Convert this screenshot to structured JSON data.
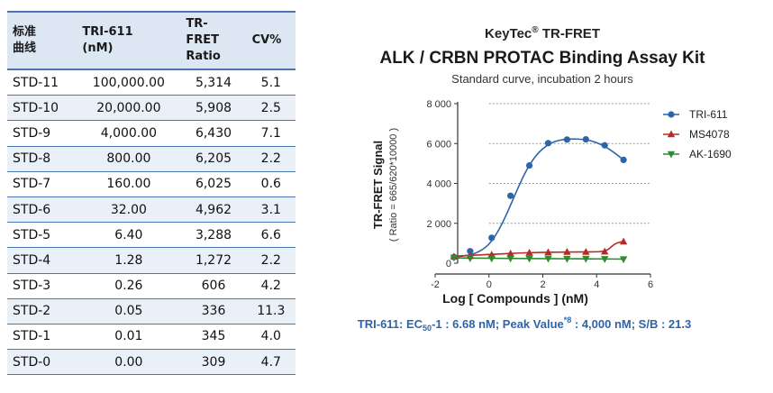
{
  "table": {
    "headers": [
      "标准\n曲线",
      "TRI-611\n(nM)",
      "TR-\nFRET\nRatio",
      "CV%"
    ],
    "rows": [
      [
        "STD-11",
        "100,000.00",
        "5,314",
        "5.1"
      ],
      [
        "STD-10",
        "20,000.00",
        "5,908",
        "2.5"
      ],
      [
        "STD-9",
        "4,000.00",
        "6,430",
        "7.1"
      ],
      [
        "STD-8",
        "800.00",
        "6,205",
        "2.2"
      ],
      [
        "STD-7",
        "160.00",
        "6,025",
        "0.6"
      ],
      [
        "STD-6",
        "32.00",
        "4,962",
        "3.1"
      ],
      [
        "STD-5",
        "6.40",
        "3,288",
        "6.6"
      ],
      [
        "STD-4",
        "1.28",
        "1,272",
        "2.2"
      ],
      [
        "STD-3",
        "0.26",
        "606",
        "4.2"
      ],
      [
        "STD-2",
        "0.05",
        "336",
        "11.3"
      ],
      [
        "STD-1",
        "0.01",
        "345",
        "4.0"
      ],
      [
        "STD-0",
        "0.00",
        "309",
        "4.7"
      ]
    ]
  },
  "chart_data": {
    "type": "scatter",
    "brand": "KeyTec",
    "brand_mark": "®",
    "brand_suffix": " TR-FRET",
    "title": "ALK / CRBN PROTAC Binding Assay Kit",
    "subtitle": "Standard curve, incubation 2 hours",
    "xlabel": "Log [ Compounds ] (nM)",
    "ylabel": "TR-FRET Signal",
    "ylabel2": "( Ratio = 665/620*10000 )",
    "xlim": [
      -2,
      6
    ],
    "ylim": [
      0,
      8000
    ],
    "xticks": [
      -2,
      0,
      2,
      4,
      6
    ],
    "xtick_labels": [
      "-2",
      "0",
      "2",
      "4",
      "6"
    ],
    "yticks": [
      0,
      2000,
      4000,
      6000,
      8000
    ],
    "ytick_labels": [
      "0",
      "2 000",
      "4 000",
      "6 000",
      "8 000"
    ],
    "grid": "horizontal dotted",
    "legend_position": "right",
    "series": [
      {
        "name": "TRI-611",
        "color": "#2e64a8",
        "marker": "circle",
        "x": [
          -1.3,
          -0.7,
          0.1,
          0.8,
          1.5,
          2.2,
          2.9,
          3.6,
          4.3,
          5.0
        ],
        "y": [
          309,
          600,
          1272,
          3380,
          4900,
          6020,
          6200,
          6210,
          5910,
          5180
        ],
        "curve_x": [
          -1.3,
          -0.9,
          -0.5,
          -0.1,
          0.2,
          0.5,
          0.8,
          1.1,
          1.4,
          1.7,
          2.0,
          2.3,
          2.6,
          2.9,
          3.2,
          3.5,
          3.8,
          4.1,
          4.4,
          4.7,
          5.0
        ],
        "curve_y": [
          310,
          360,
          480,
          800,
          1280,
          2000,
          2900,
          3850,
          4700,
          5330,
          5760,
          6030,
          6170,
          6220,
          6230,
          6210,
          6140,
          6000,
          5780,
          5500,
          5180
        ]
      },
      {
        "name": "MS4078",
        "color": "#b52b27",
        "marker": "triangle",
        "x": [
          -1.3,
          -0.7,
          0.1,
          0.8,
          1.5,
          2.2,
          2.9,
          3.6,
          4.3,
          5.0
        ],
        "y": [
          330,
          360,
          420,
          480,
          520,
          540,
          560,
          560,
          580,
          1080
        ],
        "curve_x": [
          -1.3,
          -0.5,
          0.3,
          1.1,
          1.9,
          2.7,
          3.5,
          4.1,
          4.4,
          4.6,
          4.8,
          5.0
        ],
        "curve_y": [
          350,
          400,
          460,
          510,
          540,
          560,
          565,
          570,
          640,
          900,
          1050,
          1080
        ]
      },
      {
        "name": "AK-1690",
        "color": "#2e8b2e",
        "marker": "triangle-down",
        "x": [
          -1.3,
          -0.7,
          0.1,
          0.8,
          1.5,
          2.2,
          2.9,
          3.6,
          4.3,
          5.0
        ],
        "y": [
          280,
          250,
          240,
          240,
          230,
          230,
          220,
          220,
          210,
          200
        ],
        "curve_x": [
          -1.3,
          0,
          1.5,
          3.0,
          4.3,
          5.0
        ],
        "curve_y": [
          270,
          245,
          232,
          222,
          212,
          205
        ]
      }
    ]
  },
  "footnote": {
    "lead": "TRI-611: EC",
    "lead_sub": "50",
    "lead_rest": "-1 : 6.68 nM;  Peak Value",
    "peak_sup": "*8",
    "rest": " : 4,000 nM;  S/B : 21.3"
  }
}
